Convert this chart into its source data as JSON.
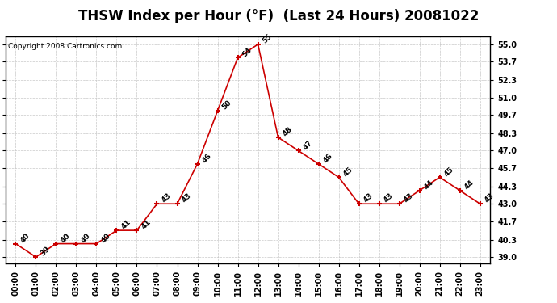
{
  "title": "THSW Index per Hour (°F)  (Last 24 Hours) 20081022",
  "copyright": "Copyright 2008 Cartronics.com",
  "hours": [
    0,
    1,
    2,
    3,
    4,
    5,
    6,
    7,
    8,
    9,
    10,
    11,
    12,
    13,
    14,
    15,
    16,
    17,
    18,
    19,
    20,
    21,
    22,
    23
  ],
  "values": [
    40,
    39,
    40,
    40,
    40,
    41,
    41,
    43,
    43,
    46,
    50,
    54,
    55,
    48,
    47,
    46,
    45,
    43,
    43,
    43,
    44,
    45,
    44,
    43
  ],
  "x_labels": [
    "00:00",
    "01:00",
    "02:00",
    "03:00",
    "04:00",
    "05:00",
    "06:00",
    "07:00",
    "08:00",
    "09:00",
    "10:00",
    "11:00",
    "12:00",
    "13:00",
    "14:00",
    "15:00",
    "16:00",
    "17:00",
    "18:00",
    "19:00",
    "20:00",
    "21:00",
    "22:00",
    "23:00"
  ],
  "y_ticks": [
    39.0,
    40.3,
    41.7,
    43.0,
    44.3,
    45.7,
    47.0,
    48.3,
    49.7,
    51.0,
    52.3,
    53.7,
    55.0
  ],
  "ylim": [
    38.5,
    55.6
  ],
  "xlim": [
    -0.5,
    23.5
  ],
  "line_color": "#cc0000",
  "marker_color": "#cc0000",
  "bg_color": "#ffffff",
  "grid_color": "#bbbbbb",
  "title_fontsize": 12,
  "label_fontsize": 7,
  "annotation_fontsize": 6.5,
  "copyright_fontsize": 6.5
}
